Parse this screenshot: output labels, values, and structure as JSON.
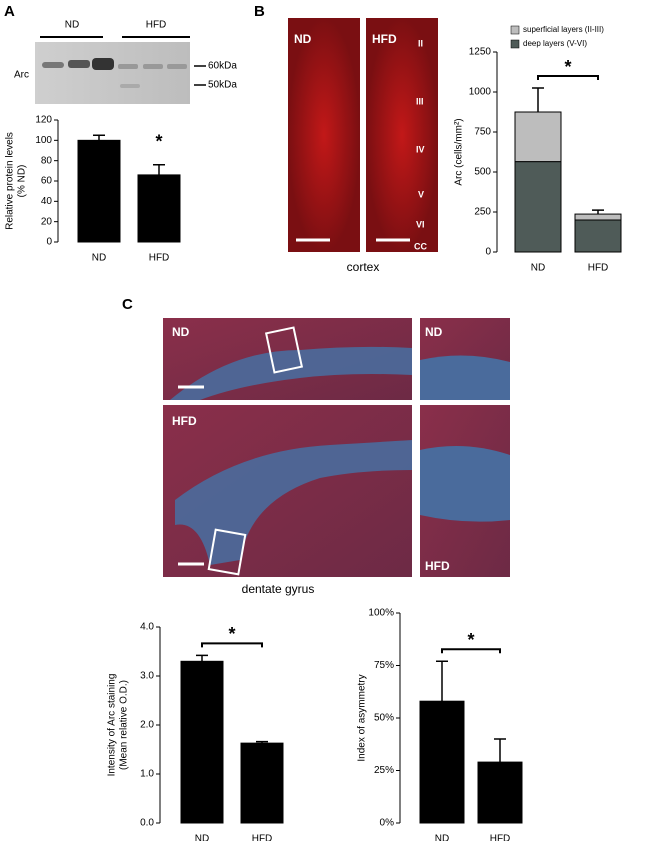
{
  "figure": {
    "panel_labels": [
      "A",
      "B",
      "C"
    ],
    "blot": {
      "groups": [
        "ND",
        "HFD"
      ],
      "protein": "Arc",
      "markers": [
        "60kDa",
        "50kDa"
      ]
    },
    "cortex": {
      "groups": [
        "ND",
        "HFD"
      ],
      "layers": [
        "II",
        "III",
        "IV",
        "V",
        "VI",
        "CC"
      ],
      "caption": "cortex"
    },
    "dentate": {
      "labels": [
        "ND",
        "ND",
        "HFD",
        "HFD"
      ],
      "caption": "dentate gyrus"
    }
  },
  "chart_data": [
    {
      "type": "bar",
      "ylabel": [
        "Relative protein levels",
        "(% ND)"
      ],
      "categories": [
        "ND",
        "HFD"
      ],
      "series": [
        {
          "color": "#000000",
          "values": [
            100,
            66
          ],
          "errors": [
            5,
            10
          ]
        }
      ],
      "ylim": [
        0,
        120
      ],
      "yticks": [
        0,
        20,
        40,
        60,
        80,
        100,
        120
      ],
      "annotation": "*",
      "bracket": false
    },
    {
      "type": "bar",
      "stacked": true,
      "ylabel": [
        "Arc (cells/mm²)"
      ],
      "categories": [
        "ND",
        "HFD"
      ],
      "series": [
        {
          "name": "deep layers (V-VI)",
          "color": "#4f5b58",
          "values": [
            565,
            200
          ],
          "errors": [
            150,
            null
          ]
        },
        {
          "name": "superficial layers (II-III)",
          "color": "#bdbdbd",
          "values": [
            310,
            37
          ],
          "errors": [
            150,
            25
          ]
        }
      ],
      "ylim": [
        0,
        1250
      ],
      "yticks": [
        0,
        250,
        500,
        750,
        1000,
        1250
      ],
      "annotation": "*",
      "bracket": true,
      "legend": "top-left"
    },
    {
      "type": "bar",
      "ylabel": [
        "Intensity of Arc staining",
        "(Mean relative O.D.)"
      ],
      "categories": [
        "ND",
        "HFD"
      ],
      "series": [
        {
          "color": "#000000",
          "values": [
            3.3,
            1.63
          ],
          "errors": [
            0.12,
            0.03
          ]
        }
      ],
      "ylim": [
        0,
        4
      ],
      "yticks": [
        {
          "value": 0,
          "label": "0.0"
        },
        {
          "value": 1,
          "label": "1.0"
        },
        {
          "value": 2,
          "label": "2.0"
        },
        {
          "value": 3,
          "label": "3.0"
        },
        {
          "value": 4,
          "label": "4.0"
        }
      ],
      "annotation": "*",
      "bracket": true
    },
    {
      "type": "bar",
      "ylabel": [
        "Index of asymmetry"
      ],
      "categories": [
        "ND",
        "HFD"
      ],
      "series": [
        {
          "color": "#000000",
          "values": [
            58,
            29
          ],
          "errors": [
            19,
            11
          ]
        }
      ],
      "ylim": [
        0,
        100
      ],
      "yticks": [
        {
          "value": 0,
          "label": "0%"
        },
        {
          "value": 25,
          "label": "25%"
        },
        {
          "value": 50,
          "label": "50%"
        },
        {
          "value": 75,
          "label": "75%"
        },
        {
          "value": 100,
          "label": "100%"
        }
      ],
      "annotation": "*",
      "bracket": true
    }
  ]
}
